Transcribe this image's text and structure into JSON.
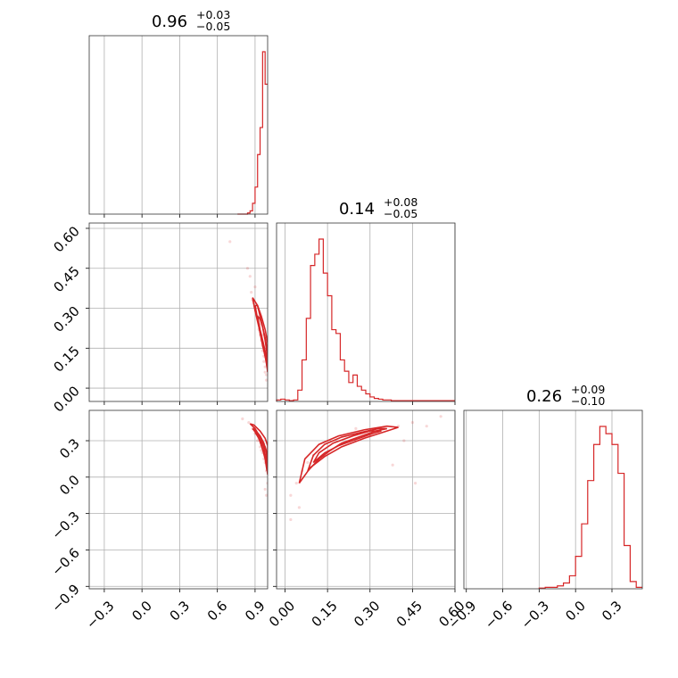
{
  "chart_data": {
    "type": "corner",
    "color": "#d62728",
    "histograms": [
      {
        "param_index": 0,
        "title": {
          "value": "0.96",
          "upper": "+0.03",
          "lower": "−0.05"
        },
        "range": [
          -0.42,
          1.0
        ],
        "bin_edges": [
          0.76,
          0.78,
          0.8,
          0.82,
          0.84,
          0.86,
          0.88,
          0.9,
          0.92,
          0.94,
          0.96,
          0.98,
          1.0
        ],
        "counts": [
          0,
          0,
          0,
          0,
          1,
          3,
          10,
          25,
          55,
          80,
          150,
          120
        ],
        "ticks": [
          -0.3,
          0.0,
          0.3,
          0.6,
          0.9
        ],
        "tick_labels": [
          "−0.3",
          "0.0",
          "0.3",
          "0.6",
          "0.9"
        ]
      },
      {
        "param_index": 1,
        "title": {
          "value": "0.14",
          "upper": "+0.08",
          "lower": "−0.05"
        },
        "range": [
          -0.03,
          0.6
        ],
        "bin_edges": [
          -0.03,
          -0.015,
          0.0,
          0.015,
          0.03,
          0.045,
          0.06,
          0.075,
          0.09,
          0.105,
          0.12,
          0.135,
          0.15,
          0.165,
          0.18,
          0.195,
          0.21,
          0.225,
          0.24,
          0.255,
          0.27,
          0.285,
          0.3,
          0.315,
          0.33,
          0.345,
          0.36,
          0.375,
          0.39,
          0.405,
          0.42,
          0.6
        ],
        "counts": [
          2,
          3,
          2,
          1,
          2,
          15,
          55,
          110,
          180,
          195,
          215,
          170,
          140,
          95,
          90,
          55,
          40,
          25,
          35,
          20,
          15,
          10,
          6,
          4,
          3,
          2,
          2,
          1,
          1,
          1,
          1
        ],
        "ticks": [
          0.0,
          0.15,
          0.3,
          0.45,
          0.6
        ],
        "tick_labels": [
          "0.00",
          "0.15",
          "0.30",
          "0.45",
          "0.60"
        ]
      },
      {
        "param_index": 2,
        "title": {
          "value": "0.26",
          "upper": "+0.09",
          "lower": "−0.10"
        },
        "range": [
          -0.92,
          0.55
        ],
        "bin_edges": [
          -0.3,
          -0.25,
          -0.2,
          -0.15,
          -0.1,
          -0.05,
          0.0,
          0.05,
          0.1,
          0.15,
          0.2,
          0.25,
          0.3,
          0.35,
          0.4,
          0.45,
          0.5,
          0.55
        ],
        "counts": [
          1,
          2,
          2,
          4,
          8,
          18,
          45,
          90,
          150,
          200,
          225,
          215,
          200,
          160,
          60,
          10,
          2
        ],
        "ticks": [
          -0.9,
          -0.6,
          -0.3,
          0.0,
          0.3
        ],
        "tick_labels": [
          "−0.9",
          "−0.6",
          "−0.3",
          "0.0",
          "0.3"
        ]
      }
    ],
    "scatter_panels": [
      {
        "x_param": 0,
        "y_param": 1,
        "xlim": [
          -0.42,
          1.0
        ],
        "ylim": [
          -0.05,
          0.62
        ],
        "points": [
          [
            0.9,
            0.38
          ],
          [
            0.88,
            0.33
          ],
          [
            0.92,
            0.27
          ],
          [
            0.93,
            0.22
          ],
          [
            0.95,
            0.18
          ],
          [
            0.96,
            0.14
          ],
          [
            0.97,
            0.1
          ],
          [
            0.98,
            0.06
          ],
          [
            0.99,
            0.03
          ],
          [
            0.86,
            0.42
          ],
          [
            0.84,
            0.45
          ],
          [
            0.91,
            0.3
          ],
          [
            0.94,
            0.2
          ],
          [
            0.96,
            0.16
          ],
          [
            0.97,
            0.12
          ],
          [
            0.98,
            0.08
          ],
          [
            0.99,
            0.05
          ],
          [
            0.7,
            0.55
          ],
          [
            0.87,
            0.36
          ],
          [
            0.89,
            0.32
          ],
          [
            0.95,
            0.24
          ],
          [
            0.93,
            0.26
          ],
          [
            0.96,
            0.2
          ]
        ],
        "contours": [
          [
            [
              0.9,
              0.31
            ],
            [
              0.92,
              0.26
            ],
            [
              0.94,
              0.21
            ],
            [
              0.96,
              0.17
            ],
            [
              0.98,
              0.12
            ],
            [
              0.995,
              0.08
            ],
            [
              0.995,
              0.13
            ],
            [
              0.98,
              0.18
            ],
            [
              0.96,
              0.23
            ],
            [
              0.94,
              0.27
            ],
            [
              0.92,
              0.31
            ],
            [
              0.9,
              0.31
            ]
          ],
          [
            [
              0.92,
              0.27
            ],
            [
              0.94,
              0.22
            ],
            [
              0.96,
              0.18
            ],
            [
              0.98,
              0.14
            ],
            [
              0.995,
              0.11
            ],
            [
              0.995,
              0.15
            ],
            [
              0.98,
              0.19
            ],
            [
              0.96,
              0.23
            ],
            [
              0.94,
              0.26
            ],
            [
              0.92,
              0.27
            ]
          ],
          [
            [
              0.88,
              0.34
            ],
            [
              0.9,
              0.29
            ],
            [
              0.93,
              0.23
            ],
            [
              0.96,
              0.16
            ],
            [
              0.99,
              0.1
            ],
            [
              1.0,
              0.06
            ],
            [
              1.0,
              0.17
            ],
            [
              0.98,
              0.22
            ],
            [
              0.95,
              0.27
            ],
            [
              0.92,
              0.31
            ],
            [
              0.88,
              0.34
            ]
          ]
        ],
        "xticks": [
          -0.3,
          0.0,
          0.3,
          0.6,
          0.9
        ],
        "yticks": [
          0.0,
          0.15,
          0.3,
          0.45,
          0.6
        ],
        "ytick_labels": [
          "0.00",
          "0.15",
          "0.30",
          "0.45",
          "0.60"
        ]
      },
      {
        "x_param": 0,
        "y_param": 2,
        "xlim": [
          -0.42,
          1.0
        ],
        "ylim": [
          -0.92,
          0.55
        ],
        "points": [
          [
            0.85,
            0.45
          ],
          [
            0.88,
            0.4
          ],
          [
            0.9,
            0.36
          ],
          [
            0.92,
            0.3
          ],
          [
            0.94,
            0.25
          ],
          [
            0.96,
            0.2
          ],
          [
            0.98,
            0.12
          ],
          [
            0.99,
            0.05
          ],
          [
            1.0,
            -0.05
          ],
          [
            0.97,
            0.15
          ],
          [
            0.93,
            0.32
          ],
          [
            0.95,
            0.22
          ],
          [
            0.99,
            -0.15
          ],
          [
            0.8,
            0.48
          ],
          [
            0.98,
            -0.1
          ]
        ],
        "contours": [
          [
            [
              0.88,
              0.4
            ],
            [
              0.91,
              0.36
            ],
            [
              0.94,
              0.3
            ],
            [
              0.96,
              0.23
            ],
            [
              0.98,
              0.15
            ],
            [
              0.995,
              0.05
            ],
            [
              1.0,
              0.1
            ],
            [
              0.99,
              0.2
            ],
            [
              0.97,
              0.28
            ],
            [
              0.94,
              0.34
            ],
            [
              0.9,
              0.39
            ],
            [
              0.88,
              0.4
            ]
          ],
          [
            [
              0.9,
              0.37
            ],
            [
              0.93,
              0.32
            ],
            [
              0.95,
              0.26
            ],
            [
              0.97,
              0.2
            ],
            [
              0.99,
              0.12
            ],
            [
              1.0,
              0.18
            ],
            [
              0.98,
              0.25
            ],
            [
              0.95,
              0.31
            ],
            [
              0.92,
              0.36
            ],
            [
              0.9,
              0.37
            ]
          ],
          [
            [
              0.86,
              0.44
            ],
            [
              0.9,
              0.4
            ],
            [
              0.94,
              0.33
            ],
            [
              0.97,
              0.24
            ],
            [
              0.99,
              0.14
            ],
            [
              1.0,
              0.02
            ],
            [
              1.0,
              0.26
            ],
            [
              0.98,
              0.32
            ],
            [
              0.94,
              0.38
            ],
            [
              0.89,
              0.43
            ],
            [
              0.86,
              0.44
            ]
          ]
        ],
        "xticks": [
          -0.3,
          0.0,
          0.3,
          0.6,
          0.9
        ],
        "xtick_labels": [
          "−0.3",
          "0.0",
          "0.3",
          "0.6",
          "0.9"
        ],
        "yticks": [
          -0.9,
          -0.6,
          -0.3,
          0.0,
          0.3
        ],
        "ytick_labels": [
          "−0.9",
          "−0.6",
          "−0.3",
          "0.0",
          "0.3"
        ]
      },
      {
        "x_param": 1,
        "y_param": 2,
        "xlim": [
          -0.03,
          0.6
        ],
        "ylim": [
          -0.92,
          0.55
        ],
        "points": [
          [
            0.02,
            -0.15
          ],
          [
            0.04,
            -0.05
          ],
          [
            0.06,
            0.05
          ],
          [
            0.08,
            0.12
          ],
          [
            0.1,
            0.18
          ],
          [
            0.3,
            0.35
          ],
          [
            0.35,
            0.4
          ],
          [
            0.4,
            0.42
          ],
          [
            0.45,
            0.45
          ],
          [
            0.5,
            0.42
          ],
          [
            0.55,
            0.5
          ],
          [
            0.42,
            0.3
          ],
          [
            0.38,
            0.1
          ],
          [
            0.46,
            -0.05
          ],
          [
            0.02,
            -0.35
          ],
          [
            0.05,
            -0.25
          ],
          [
            0.25,
            0.4
          ],
          [
            0.32,
            0.38
          ]
        ],
        "contours": [
          [
            [
              0.08,
              0.05
            ],
            [
              0.12,
              0.15
            ],
            [
              0.16,
              0.22
            ],
            [
              0.2,
              0.28
            ],
            [
              0.26,
              0.33
            ],
            [
              0.32,
              0.38
            ],
            [
              0.36,
              0.4
            ],
            [
              0.33,
              0.4
            ],
            [
              0.27,
              0.37
            ],
            [
              0.2,
              0.33
            ],
            [
              0.14,
              0.27
            ],
            [
              0.1,
              0.18
            ],
            [
              0.08,
              0.05
            ]
          ],
          [
            [
              0.1,
              0.12
            ],
            [
              0.14,
              0.2
            ],
            [
              0.19,
              0.26
            ],
            [
              0.25,
              0.31
            ],
            [
              0.31,
              0.36
            ],
            [
              0.34,
              0.38
            ],
            [
              0.3,
              0.38
            ],
            [
              0.24,
              0.34
            ],
            [
              0.17,
              0.28
            ],
            [
              0.12,
              0.2
            ],
            [
              0.1,
              0.12
            ]
          ],
          [
            [
              0.05,
              -0.05
            ],
            [
              0.09,
              0.08
            ],
            [
              0.14,
              0.17
            ],
            [
              0.2,
              0.25
            ],
            [
              0.28,
              0.32
            ],
            [
              0.36,
              0.38
            ],
            [
              0.4,
              0.41
            ],
            [
              0.36,
              0.42
            ],
            [
              0.28,
              0.39
            ],
            [
              0.19,
              0.34
            ],
            [
              0.12,
              0.27
            ],
            [
              0.07,
              0.15
            ],
            [
              0.05,
              -0.05
            ]
          ]
        ],
        "xticks": [
          0.0,
          0.15,
          0.3,
          0.45,
          0.6
        ],
        "xtick_labels": [
          "0.00",
          "0.15",
          "0.30",
          "0.45",
          "0.60"
        ],
        "yticks": [
          -0.9,
          -0.6,
          -0.3,
          0.0,
          0.3
        ]
      }
    ]
  }
}
